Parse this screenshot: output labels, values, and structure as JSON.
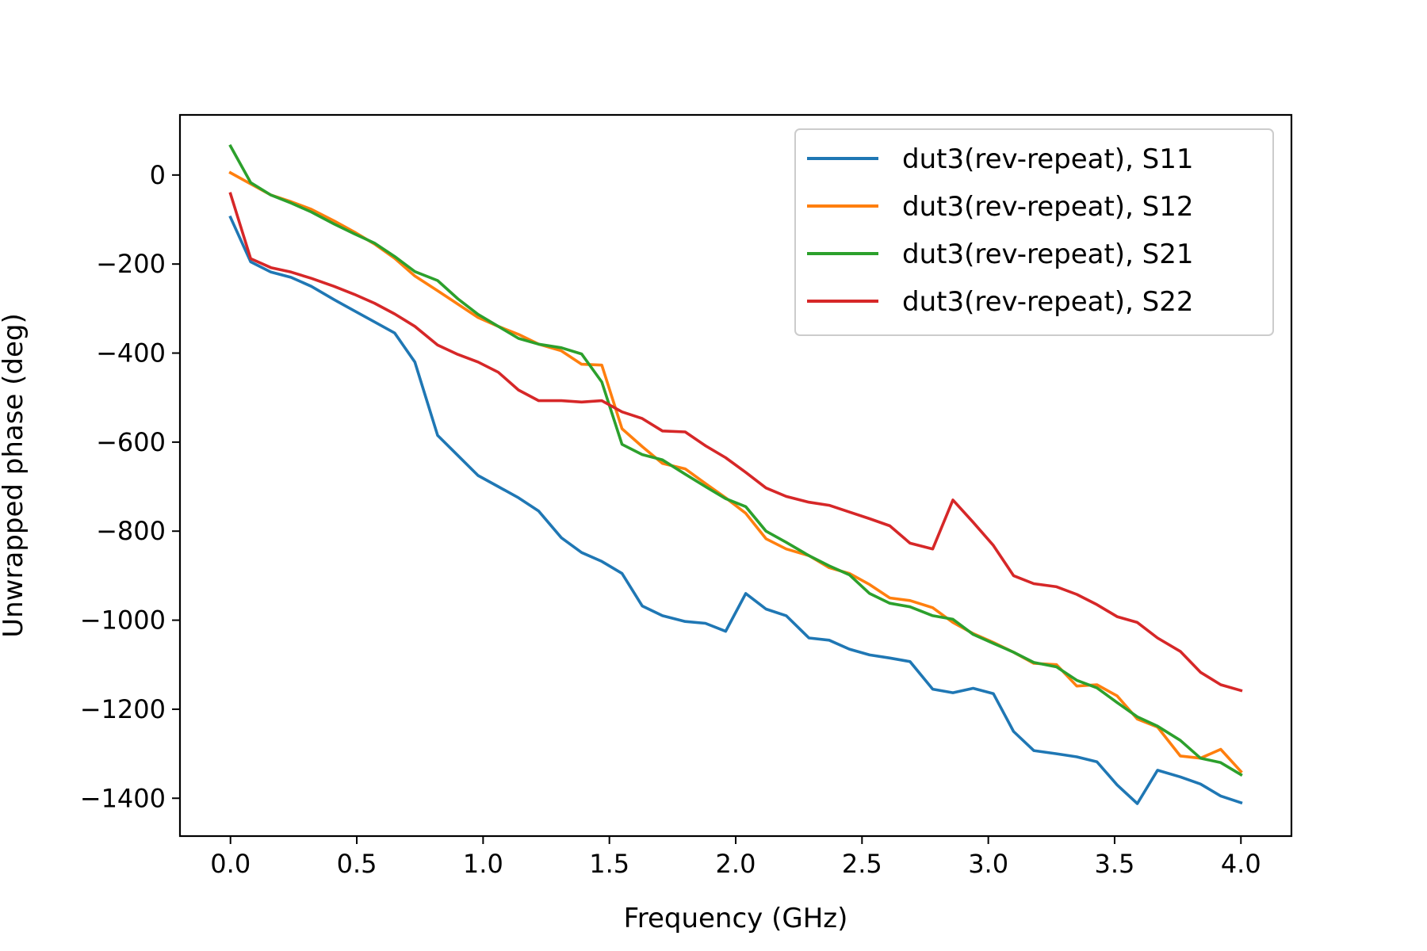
{
  "chart_data": {
    "type": "line",
    "xlabel": "Frequency (GHz)",
    "ylabel": "Unwrapped phase (deg)",
    "xlim": [
      -0.2,
      4.2
    ],
    "ylim": [
      -1485,
      135
    ],
    "xticks": [
      0.0,
      0.5,
      1.0,
      1.5,
      2.0,
      2.5,
      3.0,
      3.5,
      4.0
    ],
    "xtick_labels": [
      "0.0",
      "0.5",
      "1.0",
      "1.5",
      "2.0",
      "2.5",
      "3.0",
      "3.5",
      "4.0"
    ],
    "yticks": [
      0,
      -200,
      -400,
      -600,
      -800,
      -1000,
      -1200,
      -1400
    ],
    "ytick_labels": [
      "0",
      "−200",
      "−400",
      "−600",
      "−800",
      "−1000",
      "−1200",
      "−1400"
    ],
    "grid": false,
    "legend_position": "top-right",
    "x": [
      0.0,
      0.08,
      0.16,
      0.24,
      0.32,
      0.41,
      0.49,
      0.57,
      0.65,
      0.73,
      0.82,
      0.9,
      0.98,
      1.06,
      1.14,
      1.22,
      1.31,
      1.39,
      1.47,
      1.55,
      1.63,
      1.71,
      1.8,
      1.88,
      1.96,
      2.04,
      2.12,
      2.2,
      2.29,
      2.37,
      2.45,
      2.53,
      2.61,
      2.69,
      2.78,
      2.86,
      2.94,
      3.02,
      3.1,
      3.18,
      3.27,
      3.35,
      3.43,
      3.51,
      3.59,
      3.67,
      3.76,
      3.84,
      3.92,
      4.0
    ],
    "series": [
      {
        "name": "dut3(rev-repeat), S11",
        "color": "#1f77b4",
        "values": [
          -95,
          -195,
          -218,
          -230,
          -250,
          -280,
          -305,
          -330,
          -355,
          -420,
          -585,
          -630,
          -675,
          -700,
          -725,
          -755,
          -815,
          -848,
          -868,
          -895,
          -968,
          -990,
          -1003,
          -1007,
          -1025,
          -940,
          -975,
          -990,
          -1040,
          -1045,
          -1065,
          -1078,
          -1085,
          -1093,
          -1155,
          -1163,
          -1153,
          -1165,
          -1250,
          -1293,
          -1300,
          -1307,
          -1318,
          -1370,
          -1412,
          -1337,
          -1352,
          -1368,
          -1395,
          -1410
        ]
      },
      {
        "name": "dut3(rev-repeat), S12",
        "color": "#ff7f0e",
        "values": [
          5,
          -20,
          -45,
          -60,
          -77,
          -103,
          -128,
          -155,
          -187,
          -227,
          -260,
          -290,
          -320,
          -340,
          -358,
          -380,
          -395,
          -425,
          -427,
          -570,
          -610,
          -648,
          -660,
          -693,
          -725,
          -760,
          -817,
          -840,
          -855,
          -882,
          -895,
          -920,
          -950,
          -956,
          -972,
          -1005,
          -1030,
          -1050,
          -1072,
          -1097,
          -1100,
          -1148,
          -1145,
          -1170,
          -1222,
          -1240,
          -1305,
          -1310,
          -1290,
          -1340
        ]
      },
      {
        "name": "dut3(rev-repeat), S21",
        "color": "#2ca02c",
        "values": [
          65,
          -17,
          -45,
          -63,
          -83,
          -110,
          -132,
          -153,
          -183,
          -217,
          -237,
          -278,
          -313,
          -340,
          -367,
          -380,
          -388,
          -402,
          -465,
          -605,
          -628,
          -640,
          -672,
          -700,
          -727,
          -745,
          -800,
          -825,
          -855,
          -878,
          -898,
          -940,
          -962,
          -970,
          -990,
          -998,
          -1032,
          -1052,
          -1072,
          -1095,
          -1105,
          -1135,
          -1152,
          -1185,
          -1217,
          -1238,
          -1270,
          -1310,
          -1320,
          -1347
        ]
      },
      {
        "name": "dut3(rev-repeat), S22",
        "color": "#d62728",
        "values": [
          -42,
          -188,
          -208,
          -218,
          -232,
          -250,
          -268,
          -288,
          -312,
          -340,
          -382,
          -403,
          -420,
          -443,
          -483,
          -507,
          -507,
          -510,
          -507,
          -532,
          -547,
          -575,
          -577,
          -608,
          -635,
          -668,
          -703,
          -722,
          -735,
          -742,
          -757,
          -772,
          -788,
          -827,
          -840,
          -730,
          -780,
          -832,
          -900,
          -918,
          -925,
          -942,
          -965,
          -992,
          -1005,
          -1040,
          -1070,
          -1117,
          -1145,
          -1158
        ]
      }
    ]
  }
}
